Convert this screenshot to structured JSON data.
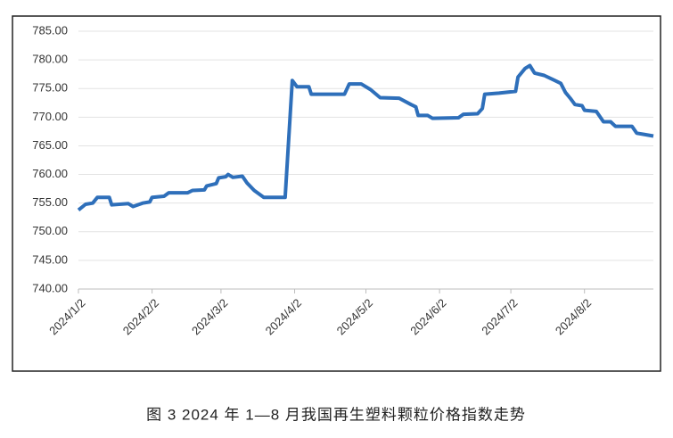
{
  "chart_data": {
    "type": "line",
    "caption": "图 3  2024 年 1—8 月我国再生塑料颗粒价格指数走势",
    "x": [
      "2024/1/2",
      "2024/1/5",
      "2024/1/8",
      "2024/1/10",
      "2024/1/15",
      "2024/1/16",
      "2024/1/23",
      "2024/1/25",
      "2024/1/29",
      "2024/2/1",
      "2024/2/2",
      "2024/2/7",
      "2024/2/9",
      "2024/2/17",
      "2024/2/19",
      "2024/2/24",
      "2024/2/25",
      "2024/2/29",
      "2024/3/1",
      "2024/3/4",
      "2024/3/5",
      "2024/3/7",
      "2024/3/11",
      "2024/3/13",
      "2024/3/16",
      "2024/3/20",
      "2024/3/29",
      "2024/4/1",
      "2024/4/3",
      "2024/4/8",
      "2024/4/9",
      "2024/4/23",
      "2024/4/25",
      "2024/4/30",
      "2024/5/4",
      "2024/5/8",
      "2024/5/16",
      "2024/5/21",
      "2024/5/23",
      "2024/5/24",
      "2024/5/28",
      "2024/5/30",
      "2024/6/10",
      "2024/6/12",
      "2024/6/18",
      "2024/6/20",
      "2024/6/21",
      "2024/6/27",
      "2024/7/4",
      "2024/7/5",
      "2024/7/8",
      "2024/7/10",
      "2024/7/12",
      "2024/7/16",
      "2024/7/20",
      "2024/7/23",
      "2024/7/25",
      "2024/7/27",
      "2024/7/29",
      "2024/8/1",
      "2024/8/2",
      "2024/8/7",
      "2024/8/10",
      "2024/8/13",
      "2024/8/15",
      "2024/8/22",
      "2024/8/24",
      "2024/8/27",
      "2024/8/31"
    ],
    "series": [
      {
        "color": "#2e6fba",
        "values": [
          753.8,
          754.8,
          755,
          756,
          756,
          754.7,
          754.9,
          754.4,
          755,
          755.2,
          756,
          756.2,
          756.8,
          756.8,
          757.2,
          757.3,
          758,
          758.4,
          759.4,
          759.6,
          760,
          759.5,
          759.7,
          758.5,
          757.2,
          756,
          756,
          776.4,
          775.3,
          775.3,
          774,
          774,
          775.8,
          775.8,
          774.8,
          773.4,
          773.3,
          772.2,
          771.8,
          770.3,
          770.3,
          769.8,
          769.9,
          770.5,
          770.6,
          771.5,
          774,
          774.2,
          774.5,
          777,
          778.5,
          779,
          777.7,
          777.3,
          776.5,
          775.9,
          774.3,
          773.3,
          772.2,
          772,
          771.2,
          771,
          769.2,
          769.2,
          768.4,
          768.4,
          767.2,
          767,
          766.7
        ]
      }
    ],
    "xlim": [
      "2024/1/2",
      "2024/8/31"
    ],
    "xticks": [
      "2024/1/2",
      "2024/2/2",
      "2024/3/2",
      "2024/4/2",
      "2024/5/2",
      "2024/6/2",
      "2024/7/2",
      "2024/8/2"
    ],
    "ylim": [
      740,
      785
    ],
    "yticks": [
      {
        "value": 740,
        "label": "740.00"
      },
      {
        "value": 745,
        "label": "745.00"
      },
      {
        "value": 750,
        "label": "750.00"
      },
      {
        "value": 755,
        "label": "755.00"
      },
      {
        "value": 760,
        "label": "760.00"
      },
      {
        "value": 765,
        "label": "765.00"
      },
      {
        "value": 770,
        "label": "770.00"
      },
      {
        "value": 775,
        "label": "775.00"
      },
      {
        "value": 780,
        "label": "780.00"
      },
      {
        "value": 785,
        "label": "785.00"
      }
    ],
    "grid": true
  }
}
